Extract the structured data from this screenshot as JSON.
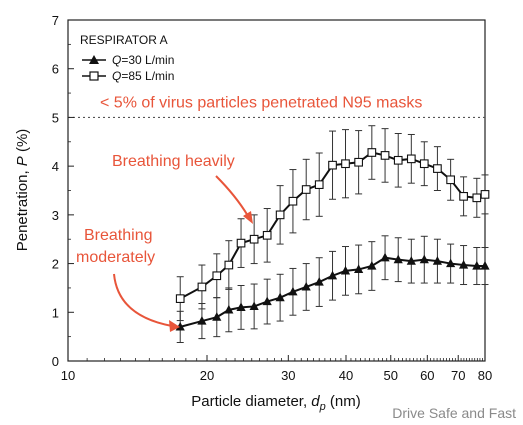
{
  "chart_data": {
    "type": "line",
    "xlabel_main": "Particle diameter, ",
    "xlabel_var": "d",
    "xlabel_sub": "p",
    "xlabel_unit": " (nm)",
    "ylabel_main": "Penetration, ",
    "ylabel_var": "P",
    "ylabel_unit": " (%)",
    "x_scale": "log",
    "xlim": [
      10,
      80
    ],
    "ylim": [
      0,
      7
    ],
    "x_ticks": [
      10,
      20,
      30,
      40,
      50,
      60,
      70,
      80
    ],
    "x_tick_labels": [
      "10",
      "20",
      "30",
      "40",
      "50",
      "60",
      "70",
      "80"
    ],
    "y_ticks": [
      0,
      1,
      2,
      3,
      4,
      5,
      6,
      7
    ],
    "y_tick_labels": [
      "0",
      "1",
      "2",
      "3",
      "4",
      "5",
      "6",
      "7"
    ],
    "legend_title": "RESPIRATOR A",
    "legend_position": "top-left",
    "threshold": {
      "value": 5,
      "label": "< 5% of virus particles penetrated N95 masks",
      "style": "dotted"
    },
    "x": [
      17.5,
      19.5,
      21,
      22.3,
      23.7,
      25.3,
      27,
      28.8,
      30.7,
      32.8,
      35,
      37.4,
      39.9,
      42.6,
      45.5,
      48.6,
      51.9,
      55.4,
      59.1,
      63.1,
      67.4,
      71.9,
      76.8,
      80
    ],
    "series": [
      {
        "name_var": "Q",
        "name_rest": "=30 L/min",
        "marker": "filled-triangle",
        "values": [
          0.7,
          0.82,
          0.9,
          1.05,
          1.1,
          1.12,
          1.22,
          1.3,
          1.42,
          1.52,
          1.62,
          1.75,
          1.85,
          1.88,
          1.95,
          2.12,
          2.08,
          2.05,
          2.08,
          2.05,
          2.0,
          1.97,
          1.95,
          1.95
        ],
        "error": [
          0.32,
          0.36,
          0.4,
          0.45,
          0.45,
          0.46,
          0.46,
          0.48,
          0.48,
          0.48,
          0.5,
          0.5,
          0.5,
          0.5,
          0.5,
          0.45,
          0.45,
          0.45,
          0.48,
          0.45,
          0.4,
          0.4,
          0.38,
          0.38
        ]
      },
      {
        "name_var": "Q",
        "name_rest": "=85 L/min",
        "marker": "open-square",
        "values": [
          1.28,
          1.52,
          1.75,
          1.97,
          2.42,
          2.5,
          2.58,
          3.0,
          3.28,
          3.52,
          3.62,
          4.02,
          4.05,
          4.08,
          4.28,
          4.22,
          4.12,
          4.15,
          4.05,
          3.95,
          3.72,
          3.38,
          3.35,
          3.42
        ],
        "error": [
          0.45,
          0.45,
          0.45,
          0.5,
          0.5,
          0.5,
          0.55,
          0.6,
          0.65,
          0.62,
          0.65,
          0.7,
          0.7,
          0.65,
          0.55,
          0.55,
          0.55,
          0.5,
          0.45,
          0.45,
          0.42,
          0.4,
          0.4,
          0.4
        ]
      }
    ],
    "annotations": [
      {
        "text": "Breathing heavily",
        "lines": [
          "Breathing heavily"
        ],
        "points_to_series": 1
      },
      {
        "text": "Breathing moderately",
        "lines": [
          "Breathing",
          "moderately"
        ],
        "points_to_series": 0
      }
    ],
    "grid": false
  },
  "watermark": "Drive Safe and Fast",
  "colors": {
    "annotation": "#e8553a",
    "series": "#111111",
    "threshold_line": "#555555",
    "watermark": "#8a8a8a"
  }
}
